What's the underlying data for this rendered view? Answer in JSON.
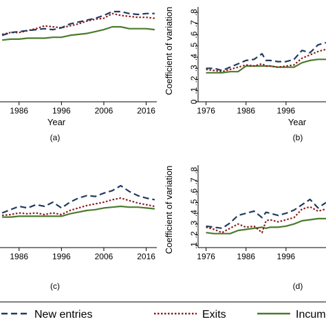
{
  "legend": [
    {
      "name": "New entries",
      "color": "#1f3a5f",
      "dash": "9,5",
      "width": 2.2
    },
    {
      "name": "Exits",
      "color": "#8b1a1a",
      "dash": "2.5,2.5",
      "width": 2.2
    },
    {
      "name": "Incumb",
      "color": "#4a7a2c",
      "dash": "",
      "width": 2.2
    }
  ],
  "chart_data": [
    {
      "type": "line",
      "caption": "(a)",
      "xlabel": "Year",
      "ylabel": "",
      "xticks": [
        1986,
        1996,
        2006,
        2016
      ],
      "yticks": [],
      "xlim": [
        1981.5,
        2018.5
      ],
      "ylim": [
        0,
        1
      ],
      "x": [
        1982,
        1984,
        1986,
        1988,
        1990,
        1992,
        1994,
        1996,
        1998,
        2000,
        2002,
        2004,
        2006,
        2008,
        2010,
        2012,
        2014,
        2016,
        2018
      ],
      "series": [
        {
          "name": "New entries",
          "values": [
            0.7,
            0.73,
            0.74,
            0.75,
            0.76,
            0.77,
            0.76,
            0.78,
            0.82,
            0.84,
            0.86,
            0.88,
            0.91,
            0.95,
            0.95,
            0.93,
            0.92,
            0.93,
            0.93
          ]
        },
        {
          "name": "Exits",
          "values": [
            0.71,
            0.73,
            0.73,
            0.75,
            0.77,
            0.8,
            0.79,
            0.78,
            0.8,
            0.82,
            0.85,
            0.87,
            0.88,
            0.93,
            0.91,
            0.9,
            0.89,
            0.89,
            0.88
          ]
        },
        {
          "name": "Incumb",
          "values": [
            0.65,
            0.66,
            0.66,
            0.67,
            0.67,
            0.67,
            0.68,
            0.68,
            0.7,
            0.71,
            0.72,
            0.74,
            0.76,
            0.79,
            0.79,
            0.77,
            0.77,
            0.77,
            0.76
          ]
        }
      ]
    },
    {
      "type": "line",
      "caption": "(b)",
      "xlabel": "Year",
      "ylabel": "Coefficient of variation",
      "xticks": [
        1976,
        1986,
        1996
      ],
      "yticks": [
        0,
        0.1,
        0.2,
        0.3,
        0.4,
        0.5,
        0.6,
        0.7,
        0.8
      ],
      "ytick_labels": [
        "0",
        ".1",
        ".2",
        ".3",
        ".4",
        ".5",
        ".6",
        ".7",
        ".8"
      ],
      "xlim": [
        1974,
        2006
      ],
      "ylim": [
        0,
        0.85
      ],
      "x": [
        1976,
        1978,
        1980,
        1982,
        1984,
        1986,
        1988,
        1990,
        1991,
        1992,
        1994,
        1996,
        1998,
        2000,
        2002,
        2004,
        2006
      ],
      "series": [
        {
          "name": "New entries",
          "values": [
            0.3,
            0.3,
            0.28,
            0.31,
            0.34,
            0.37,
            0.38,
            0.43,
            0.37,
            0.37,
            0.36,
            0.36,
            0.38,
            0.46,
            0.44,
            0.51,
            0.53
          ]
        },
        {
          "name": "Exits",
          "values": [
            0.29,
            0.28,
            0.27,
            0.29,
            0.31,
            0.33,
            0.32,
            0.34,
            0.32,
            0.32,
            0.31,
            0.32,
            0.33,
            0.39,
            0.42,
            0.45,
            0.47
          ]
        },
        {
          "name": "Incumb",
          "values": [
            0.26,
            0.26,
            0.26,
            0.27,
            0.27,
            0.32,
            0.32,
            0.32,
            0.32,
            0.32,
            0.31,
            0.31,
            0.31,
            0.35,
            0.37,
            0.38,
            0.38
          ]
        }
      ]
    },
    {
      "type": "line",
      "caption": "(c)",
      "xlabel": "",
      "ylabel": "",
      "xticks": [
        1986,
        1996,
        2006,
        2016
      ],
      "yticks": [],
      "xlim": [
        1981.5,
        2018.5
      ],
      "ylim": [
        0,
        1
      ],
      "x": [
        1982,
        1984,
        1986,
        1988,
        1990,
        1992,
        1994,
        1996,
        1998,
        2000,
        2002,
        2004,
        2006,
        2008,
        2010,
        2012,
        2014,
        2016,
        2018
      ],
      "series": [
        {
          "name": "New entries",
          "values": [
            0.42,
            0.46,
            0.5,
            0.48,
            0.52,
            0.5,
            0.55,
            0.48,
            0.55,
            0.6,
            0.63,
            0.62,
            0.66,
            0.69,
            0.75,
            0.68,
            0.63,
            0.6,
            0.58
          ]
        },
        {
          "name": "Exits",
          "values": [
            0.39,
            0.4,
            0.42,
            0.41,
            0.42,
            0.4,
            0.42,
            0.4,
            0.45,
            0.48,
            0.51,
            0.53,
            0.55,
            0.58,
            0.6,
            0.57,
            0.54,
            0.52,
            0.5
          ]
        },
        {
          "name": "Incumb",
          "values": [
            0.37,
            0.37,
            0.38,
            0.38,
            0.38,
            0.38,
            0.38,
            0.38,
            0.41,
            0.43,
            0.45,
            0.46,
            0.48,
            0.49,
            0.5,
            0.49,
            0.49,
            0.48,
            0.47
          ]
        }
      ]
    },
    {
      "type": "line",
      "caption": "(d)",
      "xlabel": "",
      "ylabel": "Coefficient of variation",
      "xticks": [
        1976,
        1986,
        1996
      ],
      "yticks": [
        0.1,
        0.2,
        0.3,
        0.4,
        0.5,
        0.6,
        0.7,
        0.8
      ],
      "ytick_labels": [
        ".1",
        ".2",
        ".3",
        ".4",
        ".5",
        ".6",
        ".7",
        ".8"
      ],
      "xlim": [
        1974,
        2006
      ],
      "ylim": [
        0.08,
        0.85
      ],
      "x": [
        1976,
        1978,
        1980,
        1982,
        1984,
        1986,
        1988,
        1990,
        1991,
        1992,
        1994,
        1996,
        1998,
        2000,
        2002,
        2004,
        2006
      ],
      "series": [
        {
          "name": "New entries",
          "values": [
            0.28,
            0.27,
            0.26,
            0.31,
            0.38,
            0.4,
            0.42,
            0.36,
            0.41,
            0.4,
            0.38,
            0.4,
            0.43,
            0.48,
            0.53,
            0.45,
            0.5
          ]
        },
        {
          "name": "Exits",
          "values": [
            0.27,
            0.25,
            0.22,
            0.26,
            0.3,
            0.27,
            0.28,
            0.22,
            0.33,
            0.34,
            0.32,
            0.34,
            0.36,
            0.44,
            0.46,
            0.42,
            0.44
          ]
        },
        {
          "name": "Incumb",
          "values": [
            0.22,
            0.21,
            0.21,
            0.21,
            0.24,
            0.25,
            0.26,
            0.27,
            0.26,
            0.27,
            0.27,
            0.28,
            0.3,
            0.33,
            0.34,
            0.35,
            0.35
          ]
        }
      ]
    }
  ]
}
